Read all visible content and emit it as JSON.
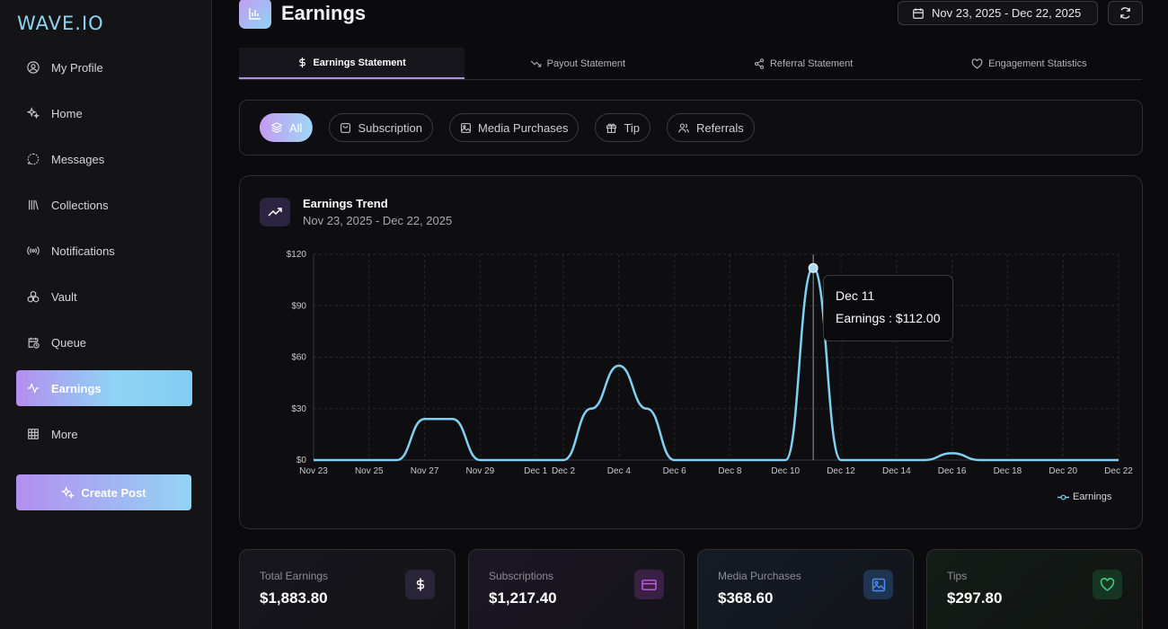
{
  "app": {
    "logo": "WAVE.IO"
  },
  "sidebar": {
    "items": [
      {
        "label": "My Profile",
        "icon": "user-circle-icon"
      },
      {
        "label": "Home",
        "icon": "sparkle-icon"
      },
      {
        "label": "Messages",
        "icon": "chat-icon"
      },
      {
        "label": "Collections",
        "icon": "library-icon"
      },
      {
        "label": "Notifications",
        "icon": "broadcast-icon"
      },
      {
        "label": "Vault",
        "icon": "boxes-icon"
      },
      {
        "label": "Queue",
        "icon": "calendar-clock-icon"
      },
      {
        "label": "Earnings",
        "icon": "activity-icon",
        "active": true
      },
      {
        "label": "More",
        "icon": "grid-icon"
      }
    ],
    "create_post": "Create Post"
  },
  "header": {
    "title": "Earnings",
    "date_range": "Nov 23, 2025 - Dec 22, 2025"
  },
  "tabs": [
    {
      "label": "Earnings Statement",
      "active": true
    },
    {
      "label": "Payout Statement"
    },
    {
      "label": "Referral Statement"
    },
    {
      "label": "Engagement Statistics"
    }
  ],
  "filters": [
    {
      "label": "All",
      "active": true
    },
    {
      "label": "Subscription"
    },
    {
      "label": "Media Purchases"
    },
    {
      "label": "Tip"
    },
    {
      "label": "Referrals"
    }
  ],
  "chart": {
    "title": "Earnings Trend",
    "subtitle": "Nov 23, 2025 - Dec 22, 2025",
    "tooltip": {
      "date": "Dec 11",
      "text": "Earnings : $112.00"
    },
    "legend": "Earnings"
  },
  "chart_data": {
    "type": "line",
    "title": "Earnings Trend",
    "x_ticks": [
      "Nov 23",
      "Nov 25",
      "Nov 27",
      "Nov 29",
      "Dec 1",
      "Dec 2",
      "Dec 4",
      "Dec 6",
      "Dec 8",
      "Dec 10",
      "Dec 12",
      "Dec 14",
      "Dec 16",
      "Dec 18",
      "Dec 20",
      "Dec 22"
    ],
    "y_ticks": [
      "$0",
      "$30",
      "$60",
      "$90",
      "$120"
    ],
    "ylim": [
      0,
      120
    ],
    "series": [
      {
        "name": "Earnings",
        "x": [
          "Nov 23",
          "Nov 24",
          "Nov 25",
          "Nov 26",
          "Nov 27",
          "Nov 28",
          "Nov 29",
          "Nov 30",
          "Dec 1",
          "Dec 2",
          "Dec 3",
          "Dec 4",
          "Dec 5",
          "Dec 6",
          "Dec 7",
          "Dec 8",
          "Dec 9",
          "Dec 10",
          "Dec 11",
          "Dec 12",
          "Dec 13",
          "Dec 14",
          "Dec 15",
          "Dec 16",
          "Dec 17",
          "Dec 18",
          "Dec 19",
          "Dec 20",
          "Dec 21",
          "Dec 22"
        ],
        "values": [
          0,
          0,
          0,
          0,
          24,
          24,
          0,
          0,
          0,
          0,
          30,
          55,
          30,
          0,
          0,
          0,
          0,
          0,
          112,
          0,
          0,
          0,
          0,
          4,
          0,
          0,
          0,
          0,
          0,
          0
        ]
      }
    ],
    "highlight": {
      "x": "Dec 11",
      "value": 112
    }
  },
  "stats": [
    {
      "label": "Total Earnings",
      "value": "$1,883.80",
      "icon": "dollar-icon",
      "color": "#ffffff"
    },
    {
      "label": "Subscriptions",
      "value": "$1,217.40",
      "icon": "card-icon",
      "color": "#c061e8"
    },
    {
      "label": "Media Purchases",
      "value": "$368.60",
      "icon": "image-icon",
      "color": "#4a8df0"
    },
    {
      "label": "Tips",
      "value": "$297.80",
      "icon": "heart-icon",
      "color": "#3fce7a"
    }
  ]
}
